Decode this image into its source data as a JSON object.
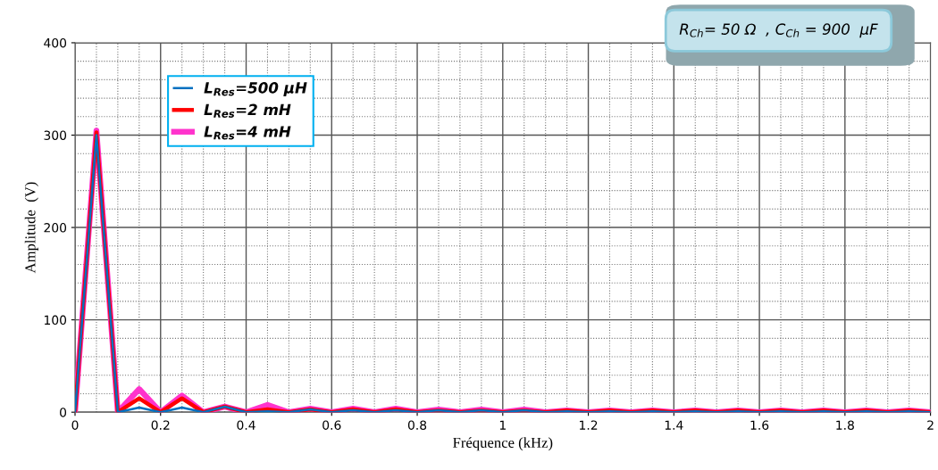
{
  "chart_data": {
    "type": "line",
    "xlabel": "Fréquence (kHz)",
    "ylabel": "Amplitude  (V)",
    "x": [
      0,
      0.05,
      0.1,
      0.15,
      0.2,
      0.25,
      0.3,
      0.35,
      0.4,
      0.45,
      0.5,
      0.55,
      0.6,
      0.65,
      0.7,
      0.75,
      0.8,
      0.85,
      0.9,
      0.95,
      1,
      1.05,
      1.1,
      1.15,
      1.2,
      1.25,
      1.3,
      1.35,
      1.4,
      1.45,
      1.5,
      1.55,
      1.6,
      1.65,
      1.7,
      1.75,
      1.8,
      1.85,
      1.9,
      1.95,
      2
    ],
    "series": [
      {
        "name": "L$_{Res}$=500 µH",
        "color": "#0070c0",
        "values": [
          0,
          300,
          0,
          5,
          0,
          5,
          0,
          6,
          0,
          1,
          0,
          3,
          0,
          2,
          0,
          2,
          0,
          2,
          0,
          2,
          0,
          2,
          0,
          1,
          0,
          1,
          0,
          1,
          0,
          1,
          0,
          1,
          0,
          1,
          0,
          1,
          0,
          1,
          0,
          1,
          0
        ]
      },
      {
        "name": "L$_{Res}$=2 mH",
        "color": "#ff0000",
        "values": [
          0,
          303,
          0,
          15,
          0,
          15,
          0,
          6,
          0,
          3,
          0,
          3,
          0,
          3,
          0,
          3,
          0,
          2,
          0,
          2,
          0,
          2,
          0,
          2,
          0,
          2,
          0,
          2,
          0,
          2,
          0,
          2,
          0,
          2,
          0,
          2,
          0,
          2,
          0,
          2,
          0
        ]
      },
      {
        "name": "L$_{Res}$=4 mH",
        "color": "#ff33cc",
        "values": [
          0,
          305,
          0,
          25,
          0,
          18,
          0,
          6,
          0,
          8,
          0,
          4,
          0,
          4,
          0,
          4,
          0,
          3,
          0,
          3,
          0,
          3,
          0,
          2,
          0,
          2,
          0,
          2,
          0,
          2,
          0,
          2,
          0,
          2,
          0,
          2,
          0,
          2,
          0,
          2,
          0
        ]
      }
    ],
    "xlim": [
      0,
      2
    ],
    "xticks": [
      0,
      0.2,
      0.4,
      0.6,
      0.8,
      1,
      1.2,
      1.4,
      1.6,
      1.8,
      2
    ],
    "ylim": [
      0,
      400
    ],
    "yticks": [
      0,
      100,
      200,
      300,
      400
    ],
    "grid": true,
    "legend": "top left",
    "annotations": [
      "R$_{Ch}$= 50 Ω  , C$_{Ch}$ = 900  µF"
    ]
  }
}
